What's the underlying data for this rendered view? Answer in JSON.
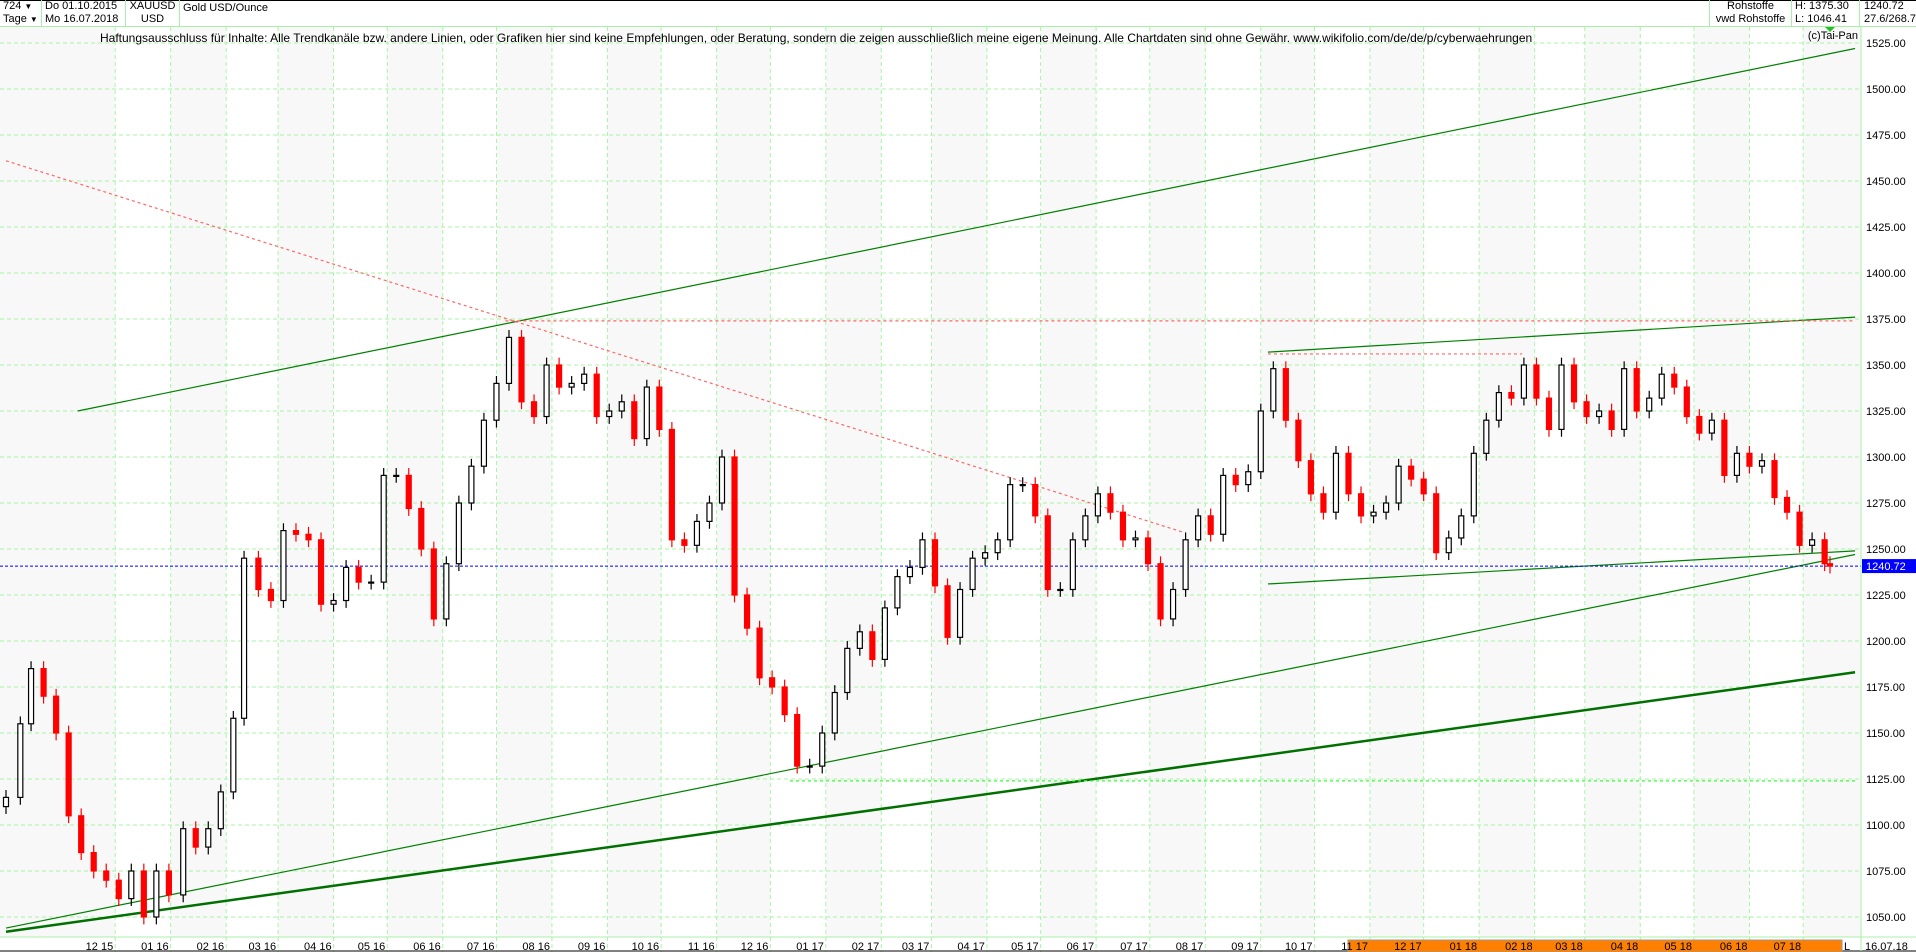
{
  "header": {
    "bars_count": "724",
    "period": "Tage",
    "start_date": "Do 01.10.2015",
    "end_date": "Mo 16.07.2018",
    "symbol": "XAUUSD",
    "currency": "USD",
    "name": "Gold USD/Ounce",
    "group": "Rohstoffe",
    "source": "vwd Rohstoffe",
    "high": "H: 1375.30",
    "low": "L: 1046.41",
    "last": "1240.72",
    "ratio": "27.6/268.7"
  },
  "disclaimer": "Haftungsausschluss für Inhalte: Alle Trendkanäle bzw. andere Linien, oder Grafiken hier sind keine Empfehlungen, oder Beratung, sondern die zeigen ausschließlich meine eigene Meinung. Alle Chartdaten sind ohne Gewähr.  www.wikifolio.com/de/de/p/cyberwaehrungen",
  "copyright": "(c)Tai-Pan",
  "colors": {
    "up": "#000000",
    "down": "#ff0000",
    "grid": "#a8f5a8",
    "trend": "#008000",
    "last_price": "#0000ff",
    "resistance": "#ff6666",
    "timeline_bar": "#ff8000"
  },
  "chart_data": {
    "type": "candlestick",
    "title": "Gold USD/Ounce",
    "ylim": [
      1040,
      1530
    ],
    "y_ticks": [
      "1050.00",
      "1075.00",
      "1100.00",
      "1125.00",
      "1150.00",
      "1175.00",
      "1200.00",
      "1225.00",
      "1250.00",
      "1275.00",
      "1300.00",
      "1325.00",
      "1350.00",
      "1375.00",
      "1400.00",
      "1425.00",
      "1450.00",
      "1475.00",
      "1500.00",
      "1525.00"
    ],
    "x_ticks": [
      {
        "label": "12 15",
        "date": "2015-12-01"
      },
      {
        "label": "01 16",
        "date": "2016-01-01"
      },
      {
        "label": "02 16",
        "date": "2016-02-01"
      },
      {
        "label": "03 16",
        "date": "2016-03-01"
      },
      {
        "label": "04 16",
        "date": "2016-04-01"
      },
      {
        "label": "05 16",
        "date": "2016-05-01"
      },
      {
        "label": "06 16",
        "date": "2016-06-01"
      },
      {
        "label": "07 16",
        "date": "2016-07-01"
      },
      {
        "label": "08 16",
        "date": "2016-08-01"
      },
      {
        "label": "09 16",
        "date": "2016-09-01"
      },
      {
        "label": "10 16",
        "date": "2016-10-01"
      },
      {
        "label": "11 16",
        "date": "2016-11-01"
      },
      {
        "label": "12 16",
        "date": "2016-12-01"
      },
      {
        "label": "01 17",
        "date": "2017-01-01"
      },
      {
        "label": "02 17",
        "date": "2017-02-01"
      },
      {
        "label": "03 17",
        "date": "2017-03-01"
      },
      {
        "label": "04 17",
        "date": "2017-04-01"
      },
      {
        "label": "05 17",
        "date": "2017-05-01"
      },
      {
        "label": "06 17",
        "date": "2017-06-01"
      },
      {
        "label": "07 17",
        "date": "2017-07-01"
      },
      {
        "label": "08 17",
        "date": "2017-08-01"
      },
      {
        "label": "09 17",
        "date": "2017-09-01"
      },
      {
        "label": "10 17",
        "date": "2017-10-01"
      },
      {
        "label": "11 17",
        "date": "2017-11-01"
      },
      {
        "label": "12 17",
        "date": "2017-12-01"
      },
      {
        "label": "01 18",
        "date": "2018-01-01"
      },
      {
        "label": "02 18",
        "date": "2018-02-01"
      },
      {
        "label": "03 18",
        "date": "2018-03-01"
      },
      {
        "label": "04 18",
        "date": "2018-04-01"
      },
      {
        "label": "05 18",
        "date": "2018-05-01"
      },
      {
        "label": "06 18",
        "date": "2018-06-01"
      },
      {
        "label": "07 18",
        "date": "2018-07-01"
      }
    ],
    "x_start": "2015-10-01",
    "x_end": "2018-07-16",
    "end_label": "16.07.18",
    "live_marker": "L",
    "last_price_label": "1240.72",
    "last_price": 1240.72,
    "closes": [
      [
        "2015-10-01",
        1115
      ],
      [
        "2015-10-09",
        1155
      ],
      [
        "2015-10-15",
        1185
      ],
      [
        "2015-10-22",
        1170
      ],
      [
        "2015-10-29",
        1150
      ],
      [
        "2015-11-05",
        1105
      ],
      [
        "2015-11-12",
        1085
      ],
      [
        "2015-11-19",
        1075
      ],
      [
        "2015-11-26",
        1070
      ],
      [
        "2015-12-03",
        1060
      ],
      [
        "2015-12-10",
        1075
      ],
      [
        "2015-12-17",
        1050
      ],
      [
        "2015-12-24",
        1075
      ],
      [
        "2015-12-31",
        1062
      ],
      [
        "2016-01-08",
        1098
      ],
      [
        "2016-01-15",
        1088
      ],
      [
        "2016-01-22",
        1098
      ],
      [
        "2016-01-29",
        1118
      ],
      [
        "2016-02-05",
        1158
      ],
      [
        "2016-02-11",
        1245
      ],
      [
        "2016-02-19",
        1228
      ],
      [
        "2016-02-26",
        1222
      ],
      [
        "2016-03-04",
        1260
      ],
      [
        "2016-03-11",
        1258
      ],
      [
        "2016-03-18",
        1255
      ],
      [
        "2016-03-25",
        1220
      ],
      [
        "2016-04-01",
        1222
      ],
      [
        "2016-04-08",
        1240
      ],
      [
        "2016-04-15",
        1232
      ],
      [
        "2016-04-22",
        1232
      ],
      [
        "2016-04-29",
        1290
      ],
      [
        "2016-05-06",
        1290
      ],
      [
        "2016-05-13",
        1272
      ],
      [
        "2016-05-20",
        1250
      ],
      [
        "2016-05-27",
        1212
      ],
      [
        "2016-06-03",
        1242
      ],
      [
        "2016-06-10",
        1275
      ],
      [
        "2016-06-17",
        1295
      ],
      [
        "2016-06-24",
        1320
      ],
      [
        "2016-07-01",
        1340
      ],
      [
        "2016-07-08",
        1365
      ],
      [
        "2016-07-15",
        1330
      ],
      [
        "2016-07-22",
        1322
      ],
      [
        "2016-07-29",
        1350
      ],
      [
        "2016-08-05",
        1338
      ],
      [
        "2016-08-12",
        1340
      ],
      [
        "2016-08-19",
        1345
      ],
      [
        "2016-08-26",
        1322
      ],
      [
        "2016-09-02",
        1325
      ],
      [
        "2016-09-09",
        1330
      ],
      [
        "2016-09-16",
        1310
      ],
      [
        "2016-09-23",
        1338
      ],
      [
        "2016-09-30",
        1315
      ],
      [
        "2016-10-07",
        1255
      ],
      [
        "2016-10-14",
        1252
      ],
      [
        "2016-10-21",
        1265
      ],
      [
        "2016-10-28",
        1275
      ],
      [
        "2016-11-04",
        1300
      ],
      [
        "2016-11-11",
        1225
      ],
      [
        "2016-11-18",
        1207
      ],
      [
        "2016-11-25",
        1180
      ],
      [
        "2016-12-02",
        1175
      ],
      [
        "2016-12-09",
        1160
      ],
      [
        "2016-12-16",
        1132
      ],
      [
        "2016-12-23",
        1132
      ],
      [
        "2016-12-30",
        1150
      ],
      [
        "2017-01-06",
        1172
      ],
      [
        "2017-01-13",
        1196
      ],
      [
        "2017-01-20",
        1205
      ],
      [
        "2017-01-27",
        1190
      ],
      [
        "2017-02-03",
        1218
      ],
      [
        "2017-02-10",
        1235
      ],
      [
        "2017-02-17",
        1240
      ],
      [
        "2017-02-24",
        1255
      ],
      [
        "2017-03-03",
        1230
      ],
      [
        "2017-03-10",
        1202
      ],
      [
        "2017-03-17",
        1228
      ],
      [
        "2017-03-24",
        1245
      ],
      [
        "2017-03-31",
        1248
      ],
      [
        "2017-04-07",
        1255
      ],
      [
        "2017-04-14",
        1285
      ],
      [
        "2017-04-21",
        1285
      ],
      [
        "2017-04-28",
        1268
      ],
      [
        "2017-05-05",
        1228
      ],
      [
        "2017-05-12",
        1228
      ],
      [
        "2017-05-19",
        1255
      ],
      [
        "2017-05-26",
        1268
      ],
      [
        "2017-06-02",
        1280
      ],
      [
        "2017-06-09",
        1270
      ],
      [
        "2017-06-16",
        1255
      ],
      [
        "2017-06-23",
        1256
      ],
      [
        "2017-06-30",
        1242
      ],
      [
        "2017-07-07",
        1212
      ],
      [
        "2017-07-14",
        1228
      ],
      [
        "2017-07-21",
        1255
      ],
      [
        "2017-07-28",
        1268
      ],
      [
        "2017-08-04",
        1258
      ],
      [
        "2017-08-11",
        1290
      ],
      [
        "2017-08-18",
        1285
      ],
      [
        "2017-08-25",
        1292
      ],
      [
        "2017-09-01",
        1325
      ],
      [
        "2017-09-08",
        1348
      ],
      [
        "2017-09-15",
        1320
      ],
      [
        "2017-09-22",
        1298
      ],
      [
        "2017-09-29",
        1280
      ],
      [
        "2017-10-06",
        1270
      ],
      [
        "2017-10-13",
        1302
      ],
      [
        "2017-10-20",
        1280
      ],
      [
        "2017-10-27",
        1268
      ],
      [
        "2017-11-03",
        1270
      ],
      [
        "2017-11-10",
        1275
      ],
      [
        "2017-11-17",
        1295
      ],
      [
        "2017-11-24",
        1288
      ],
      [
        "2017-12-01",
        1280
      ],
      [
        "2017-12-08",
        1248
      ],
      [
        "2017-12-15",
        1256
      ],
      [
        "2017-12-22",
        1268
      ],
      [
        "2017-12-29",
        1302
      ],
      [
        "2018-01-05",
        1320
      ],
      [
        "2018-01-12",
        1335
      ],
      [
        "2018-01-19",
        1332
      ],
      [
        "2018-01-26",
        1350
      ],
      [
        "2018-02-02",
        1332
      ],
      [
        "2018-02-09",
        1315
      ],
      [
        "2018-02-16",
        1350
      ],
      [
        "2018-02-23",
        1330
      ],
      [
        "2018-03-02",
        1322
      ],
      [
        "2018-03-09",
        1325
      ],
      [
        "2018-03-16",
        1315
      ],
      [
        "2018-03-23",
        1348
      ],
      [
        "2018-03-30",
        1325
      ],
      [
        "2018-04-06",
        1332
      ],
      [
        "2018-04-13",
        1345
      ],
      [
        "2018-04-20",
        1338
      ],
      [
        "2018-04-27",
        1322
      ],
      [
        "2018-05-04",
        1313
      ],
      [
        "2018-05-11",
        1320
      ],
      [
        "2018-05-18",
        1290
      ],
      [
        "2018-05-25",
        1302
      ],
      [
        "2018-06-01",
        1295
      ],
      [
        "2018-06-08",
        1298
      ],
      [
        "2018-06-15",
        1278
      ],
      [
        "2018-06-22",
        1270
      ],
      [
        "2018-06-29",
        1252
      ],
      [
        "2018-07-06",
        1255
      ],
      [
        "2018-07-13",
        1242
      ],
      [
        "2018-07-16",
        1240.72
      ]
    ],
    "trend_lines": [
      {
        "name": "upper-channel-line",
        "from": [
          "2015-11-10",
          1325
        ],
        "to": [
          "2018-07-30",
          1522
        ],
        "style": "solid",
        "color": "#008000",
        "weight": "thin"
      },
      {
        "name": "lower-channel-line",
        "from": [
          "2015-10-01",
          1044
        ],
        "to": [
          "2018-07-30",
          1247
        ],
        "style": "solid",
        "color": "#008000",
        "weight": "thin"
      },
      {
        "name": "long-term-support-line",
        "from": [
          "2015-10-01",
          1042
        ],
        "to": [
          "2018-07-30",
          1183
        ],
        "style": "solid",
        "color": "#007000",
        "weight": "thick"
      },
      {
        "name": "range-top-line",
        "from": [
          "2017-09-05",
          1357
        ],
        "to": [
          "2018-07-30",
          1376
        ],
        "style": "solid",
        "color": "#008000",
        "weight": "thin"
      },
      {
        "name": "range-bottom-line",
        "from": [
          "2017-09-05",
          1231
        ],
        "to": [
          "2018-07-30",
          1249
        ],
        "style": "solid",
        "color": "#008000",
        "weight": "thin"
      },
      {
        "name": "descending-resistance-line",
        "from": [
          "2015-10-01",
          1461
        ],
        "to": [
          "2017-07-20",
          1259
        ],
        "style": "dotted",
        "color": "#ff6666",
        "weight": "thin"
      },
      {
        "name": "high-resistance-line",
        "from": [
          "2016-07-06",
          1374
        ],
        "to": [
          "2018-07-30",
          1374
        ],
        "style": "dotted",
        "color": "#ff6666",
        "weight": "thin"
      },
      {
        "name": "sept-high-line",
        "from": [
          "2017-09-05",
          1356
        ],
        "to": [
          "2018-01-25",
          1356
        ],
        "style": "dotted",
        "color": "#ff6666",
        "weight": "thin"
      },
      {
        "name": "dec-low-support-line",
        "from": [
          "2016-12-12",
          1124
        ],
        "to": [
          "2018-07-30",
          1124
        ],
        "style": "dotted",
        "color": "#33ff33",
        "weight": "thin"
      }
    ]
  }
}
